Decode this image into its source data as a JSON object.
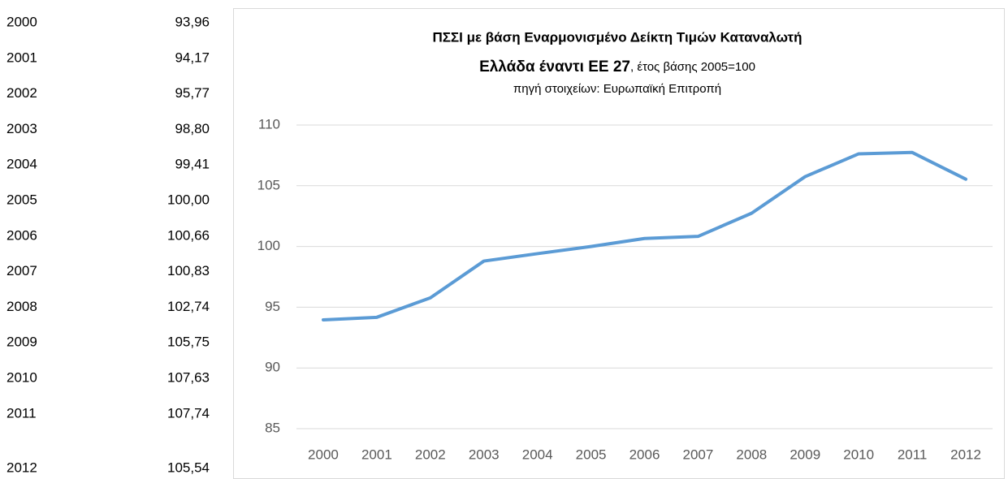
{
  "table": {
    "rows": [
      [
        "2000",
        "93,96"
      ],
      [
        "2001",
        "94,17"
      ],
      [
        "2002",
        "95,77"
      ],
      [
        "2003",
        "98,80"
      ],
      [
        "2004",
        "99,41"
      ],
      [
        "2005",
        "100,00"
      ],
      [
        "2006",
        "100,66"
      ],
      [
        "2007",
        "100,83"
      ],
      [
        "2008",
        "102,74"
      ],
      [
        "2009",
        "105,75"
      ],
      [
        "2010",
        "107,63"
      ],
      [
        "2011",
        "107,74"
      ],
      [
        "2012",
        "105,54"
      ]
    ]
  },
  "chart_data": {
    "type": "line",
    "title": "ΠΣΣΙ  με βάση Εναρμονισμένο Δείκτη Τιμών Καταναλωτή",
    "subtitle": [
      "Ελλάδα έναντι ΕΕ 27",
      ", έτος βάσης 2005=100"
    ],
    "source": "πηγή στοιχείων: Ευρωπαϊκή Επιτροπή",
    "categories": [
      "2000",
      "2001",
      "2002",
      "2003",
      "2004",
      "2005",
      "2006",
      "2007",
      "2008",
      "2009",
      "2010",
      "2011",
      "2012"
    ],
    "values": [
      93.96,
      94.17,
      95.77,
      98.8,
      99.41,
      100.0,
      100.66,
      100.83,
      102.74,
      105.75,
      107.63,
      107.74,
      105.54
    ],
    "color": "#5b9bd5",
    "ylim": [
      85,
      110
    ],
    "yticks": [
      85,
      90,
      95,
      100,
      105,
      110
    ],
    "grid": true
  }
}
